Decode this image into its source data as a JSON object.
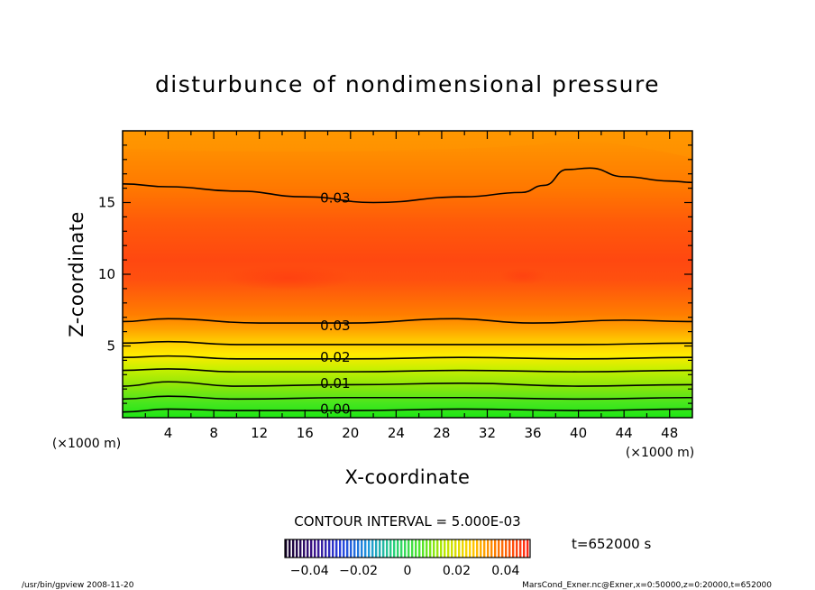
{
  "chart_data": {
    "type": "heatmap",
    "title": "disturbunce of nondimensional pressure",
    "xlabel": "X-coordinate",
    "ylabel": "Z-coordinate",
    "x_unit": "(×1000 m)",
    "y_unit": "(×1000 m)",
    "xlim": [
      0,
      50
    ],
    "ylim": [
      0,
      20
    ],
    "x_ticks": [
      "4",
      "8",
      "12",
      "16",
      "20",
      "24",
      "28",
      "32",
      "36",
      "40",
      "44",
      "48"
    ],
    "y_ticks": [
      "5",
      "10",
      "15"
    ],
    "contour_interval_text": "CONTOUR INTERVAL = 5.000E-03",
    "contour_labels": [
      {
        "value": "0.03",
        "x": 17,
        "z": 15.3
      },
      {
        "value": "0.03",
        "x": 17,
        "z": 6.4
      },
      {
        "value": "0.02",
        "x": 17,
        "z": 4.2
      },
      {
        "value": "0.01",
        "x": 17,
        "z": 2.4
      },
      {
        "value": "0.00",
        "x": 17,
        "z": 0.6
      }
    ],
    "contour_lines": [
      {
        "level": 0.0,
        "points": [
          [
            0,
            0.4
          ],
          [
            4,
            0.6
          ],
          [
            10,
            0.5
          ],
          [
            20,
            0.5
          ],
          [
            30,
            0.6
          ],
          [
            40,
            0.5
          ],
          [
            50,
            0.6
          ]
        ]
      },
      {
        "level": 0.005,
        "points": [
          [
            0,
            1.3
          ],
          [
            4,
            1.5
          ],
          [
            10,
            1.3
          ],
          [
            20,
            1.4
          ],
          [
            30,
            1.4
          ],
          [
            40,
            1.3
          ],
          [
            50,
            1.4
          ]
        ]
      },
      {
        "level": 0.01,
        "points": [
          [
            0,
            2.2
          ],
          [
            4,
            2.5
          ],
          [
            10,
            2.2
          ],
          [
            20,
            2.3
          ],
          [
            30,
            2.4
          ],
          [
            40,
            2.2
          ],
          [
            50,
            2.3
          ]
        ]
      },
      {
        "level": 0.015,
        "points": [
          [
            0,
            3.3
          ],
          [
            4,
            3.4
          ],
          [
            10,
            3.2
          ],
          [
            20,
            3.2
          ],
          [
            30,
            3.3
          ],
          [
            40,
            3.2
          ],
          [
            50,
            3.3
          ]
        ]
      },
      {
        "level": 0.02,
        "points": [
          [
            0,
            4.2
          ],
          [
            4,
            4.3
          ],
          [
            10,
            4.1
          ],
          [
            20,
            4.1
          ],
          [
            30,
            4.2
          ],
          [
            40,
            4.1
          ],
          [
            50,
            4.2
          ]
        ]
      },
      {
        "level": 0.025,
        "points": [
          [
            0,
            5.2
          ],
          [
            4,
            5.3
          ],
          [
            10,
            5.1
          ],
          [
            20,
            5.1
          ],
          [
            30,
            5.1
          ],
          [
            40,
            5.1
          ],
          [
            50,
            5.2
          ]
        ]
      },
      {
        "level": 0.03,
        "points": [
          [
            0,
            6.7
          ],
          [
            4,
            6.9
          ],
          [
            12,
            6.6
          ],
          [
            20,
            6.6
          ],
          [
            29,
            6.9
          ],
          [
            36,
            6.6
          ],
          [
            44,
            6.8
          ],
          [
            50,
            6.7
          ]
        ]
      },
      {
        "level": 0.03,
        "points": [
          [
            0,
            16.3
          ],
          [
            4,
            16.1
          ],
          [
            10,
            15.8
          ],
          [
            16,
            15.4
          ],
          [
            22,
            15.0
          ],
          [
            30,
            15.4
          ],
          [
            35,
            15.7
          ],
          [
            37,
            16.2
          ],
          [
            39,
            17.3
          ],
          [
            41,
            17.4
          ],
          [
            44,
            16.8
          ],
          [
            48,
            16.5
          ],
          [
            50,
            16.4
          ]
        ]
      }
    ],
    "colorbar": {
      "ticks": [
        "−0.04",
        "−0.02",
        "0",
        "0.02",
        "0.04"
      ],
      "range": [
        -0.05,
        0.05
      ]
    },
    "time_label": "t=652000 s",
    "footer_left": "/usr/bin/gpview   2008-11-20",
    "footer_right": "MarsCond_Exner.nc@Exner,x=0:50000,z=0:20000,t=652000",
    "colors": {
      "green": "#32e61e",
      "yellow_green": "#c8f000",
      "yellow": "#ffe600",
      "orange": "#ff9600",
      "light_orange": "#ff7800",
      "red_orange": "#ff5a0a",
      "red": "#ff3c14"
    }
  }
}
